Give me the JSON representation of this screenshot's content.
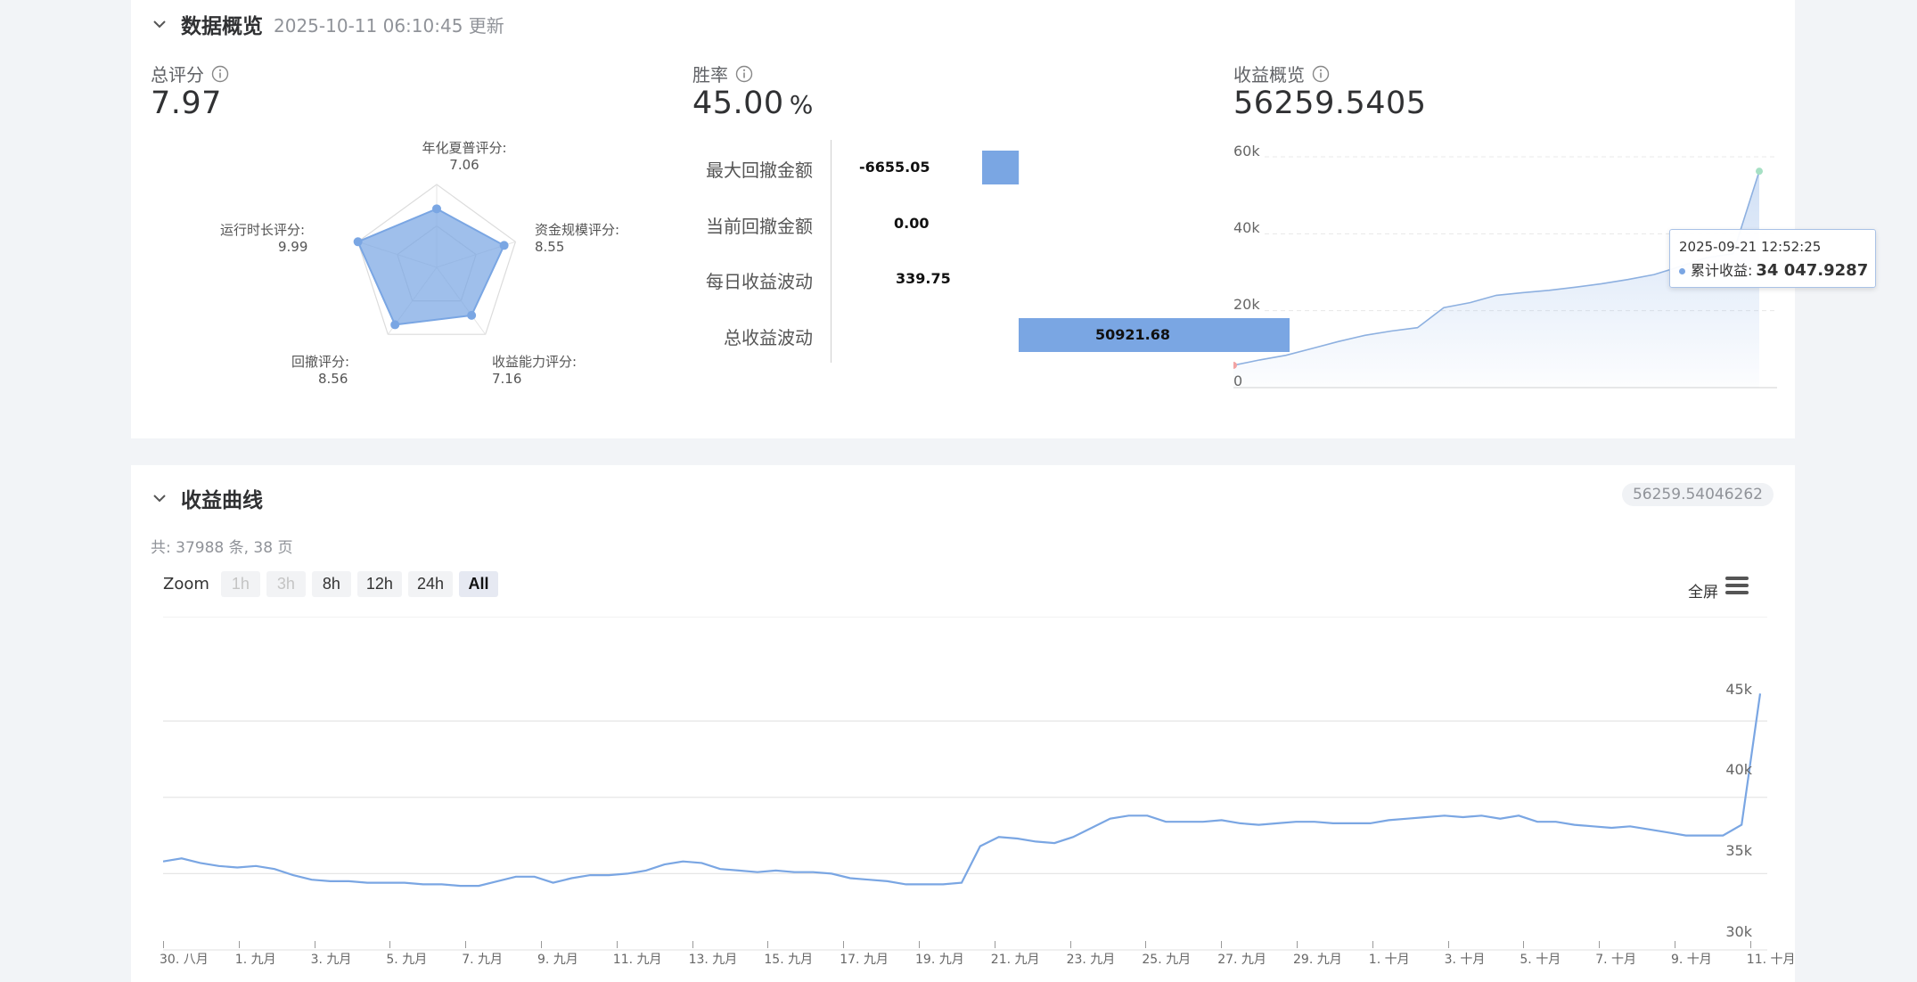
{
  "overview": {
    "title": "数据概览",
    "updated": "2025-10-11 06:10:45 更新",
    "score": {
      "label": "总评分",
      "value": "7.97",
      "radar": {
        "axes": [
          {
            "label": "年化夏普评分:",
            "value": 7.06
          },
          {
            "label": "资金规模评分:",
            "value": 8.55
          },
          {
            "label": "收益能力评分:",
            "value": 7.16
          },
          {
            "label": "回撤评分:",
            "value": 8.56
          },
          {
            "label": "运行时长评分:",
            "value": 9.99
          }
        ],
        "max": 10,
        "color": "#7aa6e3"
      }
    },
    "winrate": {
      "label": "胜率",
      "value": "45.00",
      "unit": "%",
      "bars": [
        {
          "label": "最大回撤金额",
          "value": -6655.05,
          "text": "-6655.05"
        },
        {
          "label": "当前回撤金额",
          "value": 0.0,
          "text": "0.00"
        },
        {
          "label": "每日收益波动",
          "value": 339.75,
          "text": "339.75"
        },
        {
          "label": "总收益波动",
          "value": 50921.68,
          "text": "50921.68"
        }
      ]
    },
    "profit": {
      "label": "收益概览",
      "value": "56259.5405",
      "y_ticks": [
        "60k",
        "40k",
        "20k",
        "0"
      ],
      "tooltip": {
        "date": "2025-09-21 12:52:25",
        "series": "累计收益:",
        "value": "34 047.9287"
      },
      "chart_data": {
        "type": "area",
        "ylim": [
          0,
          60000
        ],
        "x": [
          0,
          5,
          10,
          15,
          20,
          25,
          30,
          35,
          40,
          45,
          50,
          55,
          60,
          65,
          70,
          75,
          80,
          85,
          90,
          95,
          100
        ],
        "values": [
          5800,
          7200,
          8400,
          10200,
          12000,
          13600,
          14700,
          15600,
          20800,
          22100,
          24000,
          24700,
          25300,
          26100,
          27000,
          28100,
          29400,
          31500,
          33800,
          34800,
          56259
        ]
      }
    }
  },
  "curve": {
    "title": "收益曲线",
    "total": "56259.54046262",
    "count_text": "共: 37988 条, 38 页",
    "zoom_label": "Zoom",
    "zoom_buttons": [
      {
        "label": "1h",
        "state": "disabled"
      },
      {
        "label": "3h",
        "state": "disabled"
      },
      {
        "label": "8h",
        "state": "normal"
      },
      {
        "label": "12h",
        "state": "normal"
      },
      {
        "label": "24h",
        "state": "normal"
      },
      {
        "label": "All",
        "state": "active"
      }
    ],
    "fullscreen_label": "全屏",
    "y_ticks": [
      "45k",
      "40k",
      "35k",
      "30k"
    ],
    "x_ticks": [
      "30. 八月",
      "1. 九月",
      "3. 九月",
      "5. 九月",
      "7. 九月",
      "9. 九月",
      "11. 九月",
      "13. 九月",
      "15. 九月",
      "17. 九月",
      "19. 九月",
      "21. 九月",
      "23. 九月",
      "25. 九月",
      "27. 九月",
      "29. 九月",
      "1. 十月",
      "3. 十月",
      "5. 十月",
      "7. 十月",
      "9. 十月",
      "11. 十月"
    ],
    "chart_data": {
      "type": "line",
      "ylim": [
        30000,
        46000
      ],
      "x": [
        0,
        1,
        2,
        3,
        4,
        5,
        6,
        7,
        8,
        9,
        10,
        11,
        12,
        13,
        14,
        15,
        16,
        17,
        18,
        19,
        20,
        21,
        22,
        23,
        24,
        25,
        26,
        27,
        28,
        29,
        30,
        31,
        32,
        33,
        34,
        35,
        36,
        37,
        38,
        39,
        40,
        41,
        42,
        43,
        44,
        45,
        46,
        47,
        48,
        49,
        50,
        51,
        52,
        53,
        54,
        55,
        56,
        57,
        58,
        59,
        60,
        61,
        62,
        63,
        64,
        65,
        66,
        67,
        68,
        69,
        70,
        71,
        72,
        73,
        74,
        75,
        76,
        77,
        78,
        79,
        80,
        81,
        82,
        83,
        84,
        85,
        86
      ],
      "values": [
        35800,
        36000,
        35700,
        35500,
        35400,
        35500,
        35300,
        34900,
        34600,
        34500,
        34500,
        34400,
        34400,
        34400,
        34300,
        34300,
        34200,
        34200,
        34500,
        34800,
        34800,
        34400,
        34700,
        34900,
        34900,
        35000,
        35200,
        35600,
        35800,
        35700,
        35300,
        35200,
        35100,
        35200,
        35100,
        35100,
        35000,
        34700,
        34600,
        34500,
        34300,
        34300,
        34300,
        34400,
        36800,
        37400,
        37300,
        37100,
        37000,
        37400,
        38000,
        38600,
        38800,
        38800,
        38400,
        38400,
        38400,
        38500,
        38300,
        38200,
        38300,
        38400,
        38400,
        38300,
        38300,
        38300,
        38500,
        38600,
        38700,
        38800,
        38700,
        38800,
        38600,
        38800,
        38400,
        38400,
        38200,
        38100,
        38000,
        38100,
        37900,
        37700,
        37500,
        37500,
        37500,
        38200,
        46800
      ]
    }
  }
}
